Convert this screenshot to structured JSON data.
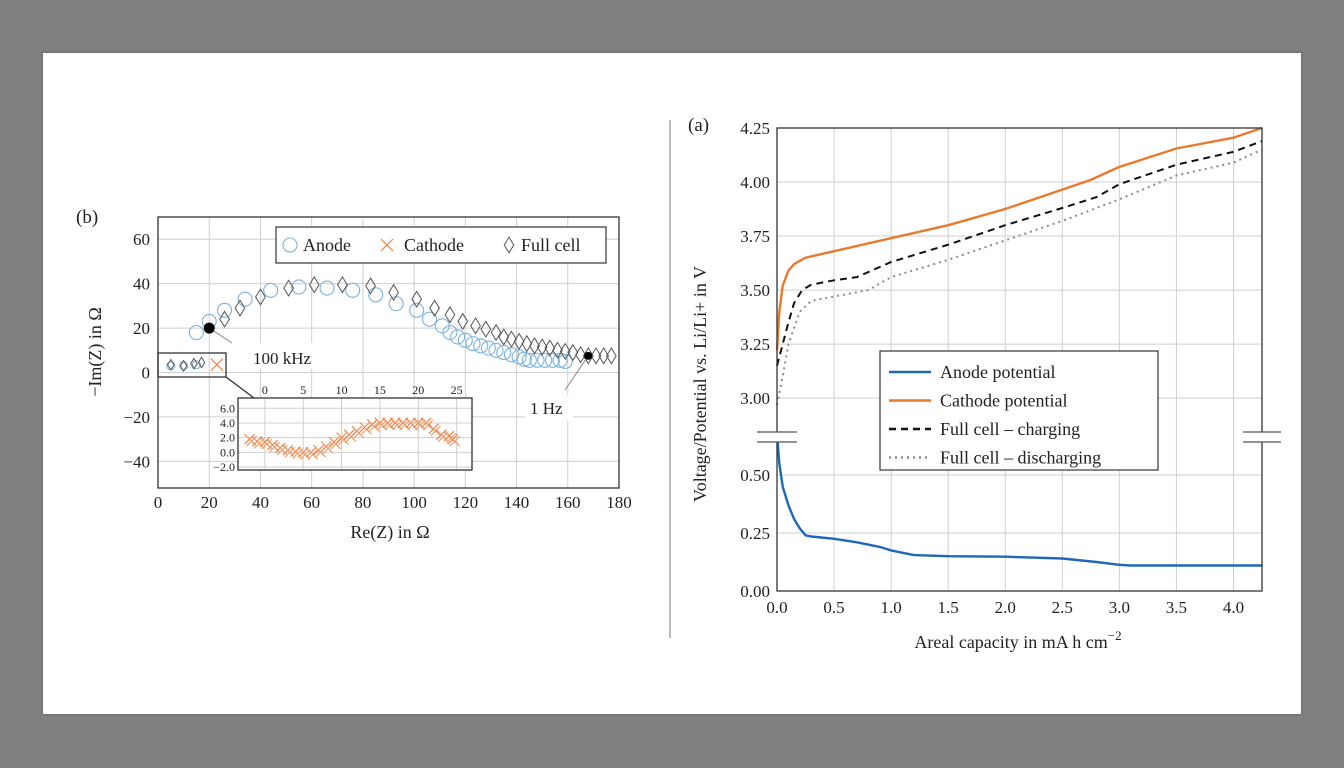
{
  "chart_data": [
    {
      "panel_label": "(b)",
      "type": "scatter",
      "xlabel": "Re(Z) in Ω",
      "ylabel": "−Im(Z) in Ω",
      "xlim": [
        0,
        180
      ],
      "ylim": [
        -52,
        70
      ],
      "xticks": [
        "0",
        "20",
        "40",
        "60",
        "80",
        "100",
        "120",
        "140",
        "160",
        "180"
      ],
      "yticks": [
        "60",
        "40",
        "20",
        "0",
        "−20",
        "−40"
      ],
      "xtick_values": [
        0,
        20,
        40,
        60,
        80,
        100,
        120,
        140,
        160,
        180
      ],
      "ytick_values": [
        60,
        40,
        20,
        0,
        -20,
        -40
      ],
      "grid": true,
      "legend_placement": "top-right",
      "series": [
        {
          "name": "Anode",
          "marker": "circle",
          "color": "#7ab3dd",
          "points": [
            [
              5,
              3
            ],
            [
              10,
              3
            ],
            [
              15,
              3.5
            ],
            [
              15,
              18
            ],
            [
              20,
              23
            ],
            [
              26,
              28
            ],
            [
              34,
              33
            ],
            [
              44,
              37
            ],
            [
              55,
              38.5
            ],
            [
              66,
              38
            ],
            [
              76,
              37
            ],
            [
              85,
              35
            ],
            [
              93,
              31
            ],
            [
              101,
              28
            ],
            [
              106,
              24
            ],
            [
              111,
              21
            ],
            [
              114,
              18
            ],
            [
              117,
              16
            ],
            [
              120,
              14.5
            ],
            [
              123,
              13
            ],
            [
              126,
              12
            ],
            [
              129,
              11
            ],
            [
              132,
              10
            ],
            [
              135,
              9
            ],
            [
              138,
              8
            ],
            [
              141,
              7
            ],
            [
              143,
              6
            ],
            [
              145,
              5.5
            ],
            [
              148,
              5.5
            ],
            [
              151,
              5.5
            ],
            [
              154,
              5.5
            ],
            [
              157,
              5.5
            ],
            [
              159,
              5
            ]
          ]
        },
        {
          "name": "Cathode",
          "marker": "cross",
          "color": "#e8874a",
          "points": [
            [
              23,
              3.5
            ]
          ]
        },
        {
          "name": "Full cell",
          "marker": "diamond",
          "color": "#555555",
          "points": [
            [
              5,
              3.5
            ],
            [
              10,
              3
            ],
            [
              14,
              4
            ],
            [
              17,
              4.5
            ],
            [
              26,
              24
            ],
            [
              32,
              29
            ],
            [
              40,
              34
            ],
            [
              51,
              38
            ],
            [
              61,
              39.5
            ],
            [
              72,
              39.5
            ],
            [
              83,
              39
            ],
            [
              92,
              36
            ],
            [
              101,
              33
            ],
            [
              108,
              29
            ],
            [
              114,
              26
            ],
            [
              119,
              23
            ],
            [
              124,
              21
            ],
            [
              128,
              19.5
            ],
            [
              132,
              18
            ],
            [
              135,
              16
            ],
            [
              138,
              15
            ],
            [
              141,
              14
            ],
            [
              144,
              13
            ],
            [
              147,
              12
            ],
            [
              150,
              11.5
            ],
            [
              153,
              11
            ],
            [
              156,
              10
            ],
            [
              159,
              9.5
            ],
            [
              162,
              9
            ],
            [
              165,
              8
            ],
            [
              168,
              7.5
            ],
            [
              171,
              7.5
            ],
            [
              174,
              7.5
            ],
            [
              177,
              7.5
            ]
          ]
        }
      ],
      "annotations": [
        {
          "text": "100 kHz",
          "x": 20,
          "y": 20
        },
        {
          "text": "1 Hz",
          "x": 168,
          "y": 7.5
        }
      ],
      "inset": {
        "xlim": [
          -3.5,
          27
        ],
        "ylim": [
          -2.4,
          7.4
        ],
        "xticks": [
          "0",
          "5",
          "10",
          "15",
          "20",
          "25"
        ],
        "xtick_values": [
          0,
          5,
          10,
          15,
          20,
          25
        ],
        "yticks": [
          "6.0",
          "4.0",
          "2.0",
          "0.0",
          "−2.0"
        ],
        "ytick_values": [
          6,
          4,
          2,
          0,
          -2
        ],
        "series_name": "Cathode",
        "points": [
          [
            -2,
            1.8
          ],
          [
            -1,
            1.5
          ],
          [
            0,
            1.4
          ],
          [
            1,
            1
          ],
          [
            2,
            0.6
          ],
          [
            3,
            0.3
          ],
          [
            4,
            0.1
          ],
          [
            5,
            0
          ],
          [
            6,
            0
          ],
          [
            7,
            0.3
          ],
          [
            8,
            0.8
          ],
          [
            9,
            1.4
          ],
          [
            10,
            2
          ],
          [
            11,
            2.4
          ],
          [
            12,
            2.9
          ],
          [
            13,
            3.4
          ],
          [
            14,
            3.8
          ],
          [
            15,
            4
          ],
          [
            16,
            4
          ],
          [
            17,
            4
          ],
          [
            18,
            4
          ],
          [
            19,
            4
          ],
          [
            20,
            4
          ],
          [
            21,
            4
          ],
          [
            22,
            3.2
          ],
          [
            23,
            2.4
          ],
          [
            24,
            2.2
          ],
          [
            24.5,
            1.8
          ]
        ]
      }
    },
    {
      "panel_label": "(a)",
      "type": "line",
      "xlabel": "Areal capacity in mA h cm",
      "xlabel_sup": "−2",
      "ylabel": "Voltage/Potential vs. Li/Li+ in V",
      "xlim": [
        0,
        4.25
      ],
      "ylim_upper": [
        2.82,
        4.25
      ],
      "ylim_lower": [
        0,
        0.664
      ],
      "broken_y_axis": true,
      "xticks": [
        "0.0",
        "0.5",
        "1.0",
        "1.5",
        "2.0",
        "2.5",
        "3.0",
        "3.5",
        "4.0"
      ],
      "xtick_values": [
        0,
        0.5,
        1,
        1.5,
        2,
        2.5,
        3,
        3.5,
        4
      ],
      "yticks_upper": [
        "4.25",
        "4.00",
        "3.75",
        "3.50",
        "3.25",
        "3.00"
      ],
      "ytick_values_upper": [
        4.25,
        4.0,
        3.75,
        3.5,
        3.25,
        3.0
      ],
      "yticks_lower": [
        "0.50",
        "0.25",
        "0.00"
      ],
      "ytick_values_lower": [
        0.5,
        0.25,
        0
      ],
      "grid": true,
      "legend_placement": "center",
      "series": [
        {
          "name": "Anode potential",
          "color": "#1f68b8",
          "style": "solid",
          "axis": "lower",
          "points": [
            [
              0,
              0.68
            ],
            [
              0.02,
              0.55
            ],
            [
              0.05,
              0.45
            ],
            [
              0.1,
              0.37
            ],
            [
              0.15,
              0.31
            ],
            [
              0.2,
              0.27
            ],
            [
              0.25,
              0.24
            ],
            [
              0.3,
              0.235
            ],
            [
              0.5,
              0.225
            ],
            [
              0.7,
              0.21
            ],
            [
              0.9,
              0.19
            ],
            [
              1.0,
              0.175
            ],
            [
              1.2,
              0.155
            ],
            [
              1.5,
              0.15
            ],
            [
              2.0,
              0.148
            ],
            [
              2.5,
              0.14
            ],
            [
              2.8,
              0.125
            ],
            [
              3.0,
              0.113
            ],
            [
              3.1,
              0.11
            ],
            [
              4.25,
              0.11
            ]
          ]
        },
        {
          "name": "Cathode potential",
          "color": "#e87a2e",
          "style": "solid",
          "axis": "upper",
          "points": [
            [
              0,
              3.22
            ],
            [
              0.02,
              3.4
            ],
            [
              0.05,
              3.52
            ],
            [
              0.1,
              3.59
            ],
            [
              0.15,
              3.62
            ],
            [
              0.25,
              3.65
            ],
            [
              0.5,
              3.68
            ],
            [
              1.0,
              3.74
            ],
            [
              1.5,
              3.8
            ],
            [
              2.0,
              3.875
            ],
            [
              2.5,
              3.965
            ],
            [
              2.75,
              4.01
            ],
            [
              3.0,
              4.07
            ],
            [
              3.5,
              4.155
            ],
            [
              4.0,
              4.205
            ],
            [
              4.25,
              4.25
            ]
          ]
        },
        {
          "name": "Full cell – charging",
          "color": "#111111",
          "style": "dashed",
          "axis": "upper",
          "points": [
            [
              0,
              3.15
            ],
            [
              0.05,
              3.25
            ],
            [
              0.1,
              3.35
            ],
            [
              0.15,
              3.44
            ],
            [
              0.22,
              3.5
            ],
            [
              0.3,
              3.525
            ],
            [
              0.5,
              3.545
            ],
            [
              0.7,
              3.56
            ],
            [
              1.0,
              3.63
            ],
            [
              1.5,
              3.71
            ],
            [
              2.0,
              3.8
            ],
            [
              2.5,
              3.88
            ],
            [
              2.8,
              3.93
            ],
            [
              3.0,
              3.99
            ],
            [
              3.5,
              4.08
            ],
            [
              4.0,
              4.14
            ],
            [
              4.25,
              4.19
            ]
          ]
        },
        {
          "name": "Full cell – discharging",
          "color": "#8a8a8a",
          "style": "dotted",
          "axis": "upper",
          "points": [
            [
              0,
              2.97
            ],
            [
              0.05,
              3.1
            ],
            [
              0.1,
              3.25
            ],
            [
              0.2,
              3.4
            ],
            [
              0.3,
              3.45
            ],
            [
              0.5,
              3.47
            ],
            [
              0.8,
              3.5
            ],
            [
              1.0,
              3.56
            ],
            [
              1.5,
              3.64
            ],
            [
              2.0,
              3.73
            ],
            [
              2.5,
              3.82
            ],
            [
              3.0,
              3.92
            ],
            [
              3.5,
              4.03
            ],
            [
              4.0,
              4.09
            ],
            [
              4.25,
              4.15
            ]
          ]
        }
      ]
    }
  ]
}
